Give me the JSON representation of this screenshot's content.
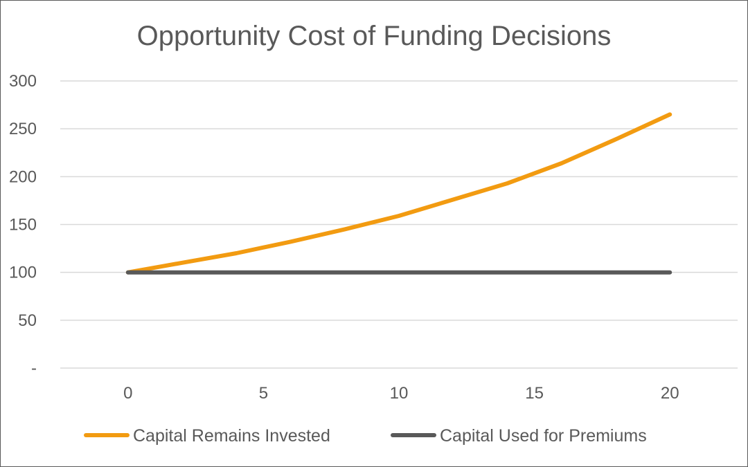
{
  "chart_data": {
    "type": "line",
    "title": "Opportunity Cost of Funding Decisions",
    "xlabel": "",
    "ylabel": "",
    "x": [
      0,
      2,
      4,
      6,
      8,
      10,
      12,
      14,
      16,
      18,
      20
    ],
    "x_ticks": [
      "0",
      "5",
      "10",
      "15",
      "20"
    ],
    "x_tick_values": [
      0,
      5,
      10,
      15,
      20
    ],
    "y_ticks": [
      "-",
      "50",
      "100",
      "150",
      "200",
      "250",
      "300"
    ],
    "y_tick_values": [
      0,
      50,
      100,
      150,
      200,
      250,
      300
    ],
    "xlim": [
      -2.5,
      22.5
    ],
    "ylim": [
      0,
      300
    ],
    "grid": true,
    "legend_position": "bottom",
    "series": [
      {
        "name": "Capital Remains Invested",
        "color": "#F29B11",
        "values": [
          100,
          110,
          120,
          132,
          145,
          159,
          176,
          193,
          214,
          239,
          265
        ]
      },
      {
        "name": "Capital Used for Premiums",
        "color": "#595959",
        "values": [
          100,
          100,
          100,
          100,
          100,
          100,
          100,
          100,
          100,
          100,
          100
        ]
      }
    ]
  }
}
